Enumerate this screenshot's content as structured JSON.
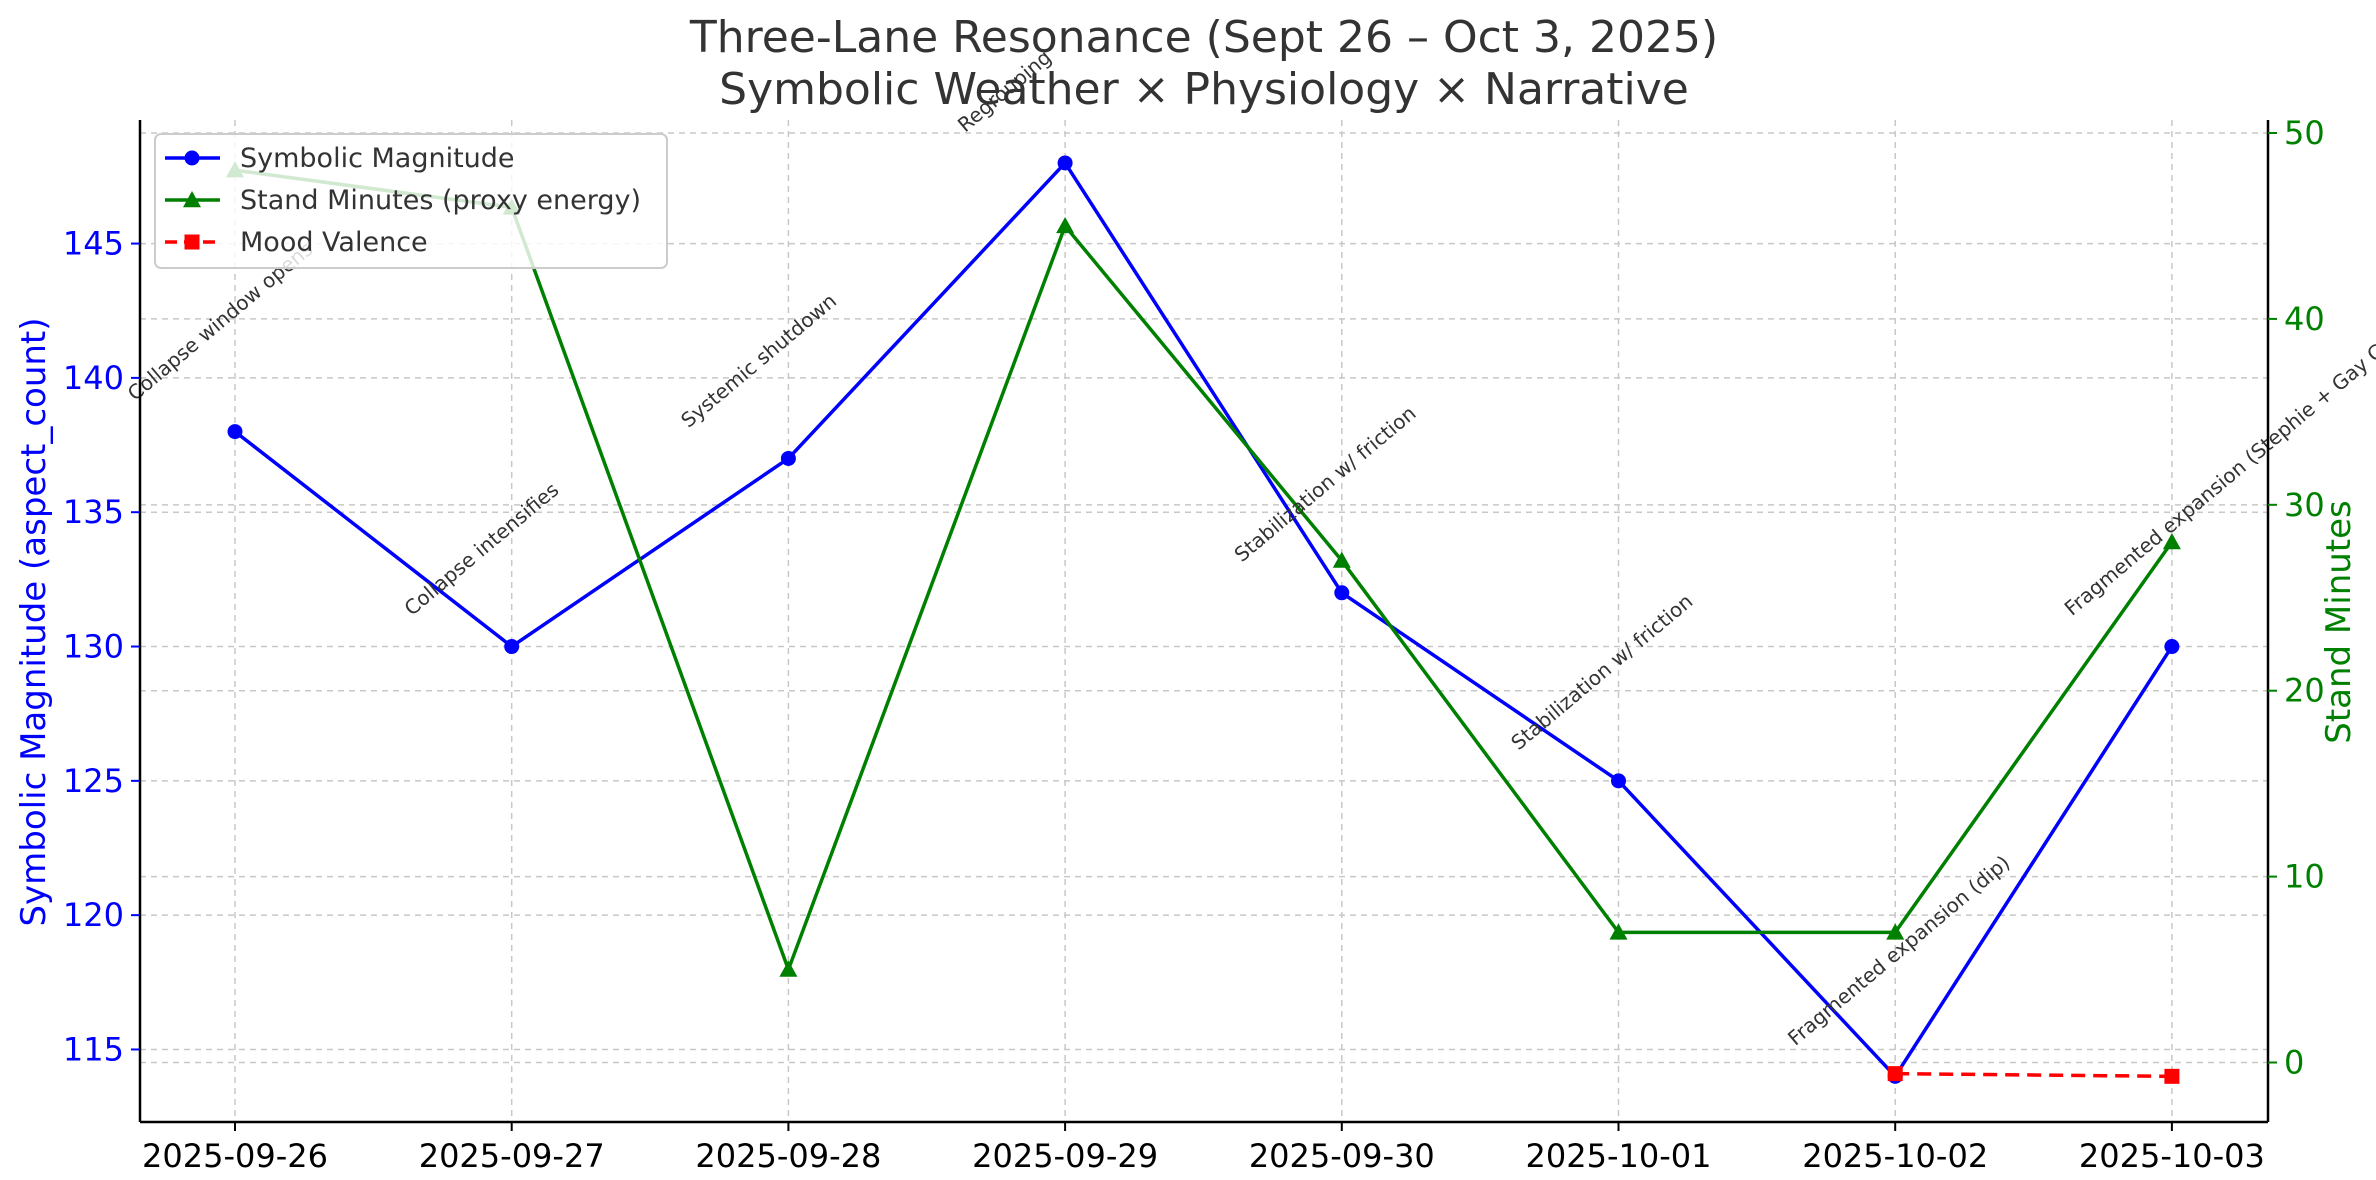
{
  "chart_data": {
    "type": "line",
    "title": "Three-Lane Resonance (Sept 26 – Oct 3, 2025)",
    "subtitle": "Symbolic Weather × Physiology × Narrative",
    "categories": [
      "2025-09-26",
      "2025-09-27",
      "2025-09-28",
      "2025-09-29",
      "2025-09-30",
      "2025-10-01",
      "2025-10-02",
      "2025-10-03"
    ],
    "y_left": {
      "label": "Symbolic Magnitude (aspect_count)",
      "range": [
        112.3,
        149.6
      ],
      "ticks": [
        115,
        120,
        125,
        130,
        135,
        140,
        145
      ],
      "color": "#0000ff"
    },
    "y_right": {
      "label": "Stand Minutes",
      "range": [
        -3.2,
        50.7
      ],
      "ticks": [
        0,
        10,
        20,
        30,
        40,
        50
      ],
      "color": "#008000"
    },
    "series": [
      {
        "name": "Symbolic Magnitude",
        "axis": "left",
        "color": "#0000ff",
        "marker": "circle",
        "dash": false,
        "values": [
          138,
          130,
          137,
          148,
          132,
          125,
          114,
          130
        ]
      },
      {
        "name": "Stand Minutes (proxy energy)",
        "axis": "right",
        "color": "#008000",
        "marker": "triangle",
        "dash": false,
        "values": [
          48,
          46,
          5,
          45,
          27,
          7,
          7,
          28
        ]
      },
      {
        "name": "Mood Valence",
        "axis": "left",
        "color": "#ff0000",
        "marker": "square",
        "dash": true,
        "values": [
          null,
          null,
          null,
          null,
          null,
          null,
          114.1,
          114.0
        ]
      }
    ],
    "annotations": [
      {
        "text": "Collapse window opens",
        "index": 0,
        "value": 138
      },
      {
        "text": "Collapse intensifies",
        "index": 1,
        "value": 130
      },
      {
        "text": "Systemic shutdown",
        "index": 2,
        "value": 137
      },
      {
        "text": "Regrouping",
        "index": 3,
        "value": 148
      },
      {
        "text": "Stabilization w/ friction",
        "index": 4,
        "value": 132
      },
      {
        "text": "Stabilization w/ friction",
        "index": 5,
        "value": 125
      },
      {
        "text": "Fragmented expansion (dip)",
        "index": 6,
        "value": 114
      },
      {
        "text": "Fragmented expansion (Stephie + Gay Con)",
        "index": 7,
        "value": 130
      }
    ],
    "grid": true,
    "legend_position": "top-left"
  }
}
